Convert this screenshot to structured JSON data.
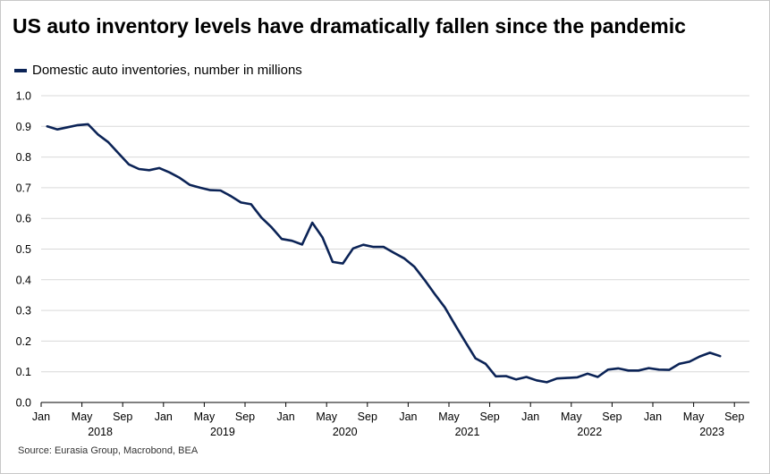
{
  "title": "US auto inventory levels have dramatically fallen since the pandemic",
  "source": "Source: Eurasia Group, Macrobond, BEA",
  "colors": {
    "line": "#0b2356",
    "grid": "#d9d9d9",
    "axis": "#000000"
  },
  "chart_data": {
    "type": "line",
    "legend_position": "top-left",
    "grid": true,
    "ylim": [
      0,
      1.0
    ],
    "y_ticks": [
      "0.0",
      "0.1",
      "0.2",
      "0.3",
      "0.4",
      "0.5",
      "0.6",
      "0.7",
      "0.8",
      "0.9",
      "1.0"
    ],
    "x_ticks": [
      "Jan",
      "May",
      "Sep",
      "Jan",
      "May",
      "Sep",
      "Jan",
      "May",
      "Sep",
      "Jan",
      "May",
      "Sep",
      "Jan",
      "May",
      "Sep",
      "Jan",
      "May",
      "Sep"
    ],
    "year_labels": [
      "2018",
      "2019",
      "2020",
      "2021",
      "2022",
      "2023"
    ],
    "series": [
      {
        "name": "Domestic auto inventories, number in millions",
        "x": [
          "2018-01",
          "2018-02",
          "2018-03",
          "2018-04",
          "2018-05",
          "2018-06",
          "2018-07",
          "2018-08",
          "2018-09",
          "2018-10",
          "2018-11",
          "2018-12",
          "2019-01",
          "2019-02",
          "2019-03",
          "2019-04",
          "2019-05",
          "2019-06",
          "2019-07",
          "2019-08",
          "2019-09",
          "2019-10",
          "2019-11",
          "2019-12",
          "2020-01",
          "2020-02",
          "2020-03",
          "2020-04",
          "2020-05",
          "2020-06",
          "2020-07",
          "2020-08",
          "2020-09",
          "2020-10",
          "2020-11",
          "2020-12",
          "2021-01",
          "2021-02",
          "2021-03",
          "2021-04",
          "2021-05",
          "2021-06",
          "2021-07",
          "2021-08",
          "2021-09",
          "2021-10",
          "2021-11",
          "2021-12",
          "2022-01",
          "2022-02",
          "2022-03",
          "2022-04",
          "2022-05",
          "2022-06",
          "2022-07",
          "2022-08",
          "2022-09",
          "2022-10",
          "2022-11",
          "2022-12",
          "2023-01",
          "2023-02",
          "2023-03",
          "2023-04",
          "2023-05",
          "2023-06",
          "2023-07"
        ],
        "values": [
          0.9,
          0.89,
          0.897,
          0.904,
          0.907,
          0.873,
          0.848,
          0.812,
          0.776,
          0.761,
          0.757,
          0.764,
          0.75,
          0.732,
          0.709,
          0.7,
          0.692,
          0.691,
          0.673,
          0.652,
          0.646,
          0.603,
          0.571,
          0.533,
          0.527,
          0.515,
          0.586,
          0.538,
          0.458,
          0.453,
          0.502,
          0.514,
          0.507,
          0.507,
          0.488,
          0.47,
          0.443,
          0.4,
          0.354,
          0.31,
          0.253,
          0.198,
          0.144,
          0.126,
          0.085,
          0.086,
          0.075,
          0.083,
          0.072,
          0.066,
          0.078,
          0.08,
          0.082,
          0.094,
          0.083,
          0.107,
          0.111,
          0.104,
          0.104,
          0.112,
          0.107,
          0.106,
          0.126,
          0.133,
          0.15,
          0.162,
          0.151
        ]
      }
    ]
  }
}
